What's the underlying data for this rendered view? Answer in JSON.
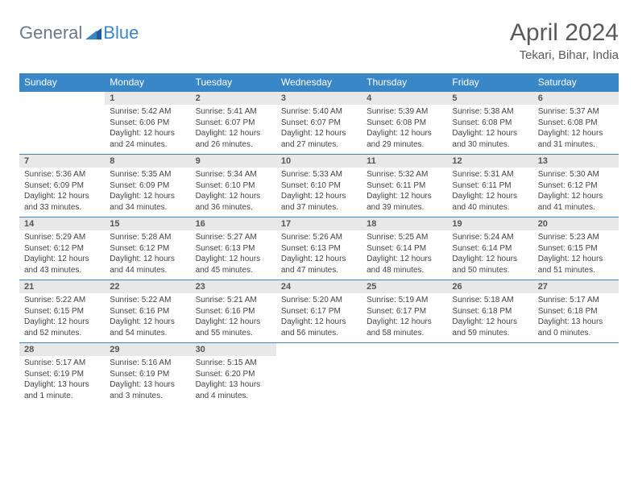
{
  "logo": {
    "text_general": "General",
    "text_blue": "Blue"
  },
  "title": "April 2024",
  "location": "Tekari, Bihar, India",
  "colors": {
    "header_bg": "#3a87c8",
    "header_text": "#ffffff",
    "daynum_bg": "#e8e8e8",
    "border": "#3a87c8",
    "body_text": "#444444",
    "title_text": "#5a5a5a"
  },
  "day_headers": [
    "Sunday",
    "Monday",
    "Tuesday",
    "Wednesday",
    "Thursday",
    "Friday",
    "Saturday"
  ],
  "weeks": [
    [
      null,
      {
        "num": "1",
        "sunrise": "Sunrise: 5:42 AM",
        "sunset": "Sunset: 6:06 PM",
        "day1": "Daylight: 12 hours",
        "day2": "and 24 minutes."
      },
      {
        "num": "2",
        "sunrise": "Sunrise: 5:41 AM",
        "sunset": "Sunset: 6:07 PM",
        "day1": "Daylight: 12 hours",
        "day2": "and 26 minutes."
      },
      {
        "num": "3",
        "sunrise": "Sunrise: 5:40 AM",
        "sunset": "Sunset: 6:07 PM",
        "day1": "Daylight: 12 hours",
        "day2": "and 27 minutes."
      },
      {
        "num": "4",
        "sunrise": "Sunrise: 5:39 AM",
        "sunset": "Sunset: 6:08 PM",
        "day1": "Daylight: 12 hours",
        "day2": "and 29 minutes."
      },
      {
        "num": "5",
        "sunrise": "Sunrise: 5:38 AM",
        "sunset": "Sunset: 6:08 PM",
        "day1": "Daylight: 12 hours",
        "day2": "and 30 minutes."
      },
      {
        "num": "6",
        "sunrise": "Sunrise: 5:37 AM",
        "sunset": "Sunset: 6:08 PM",
        "day1": "Daylight: 12 hours",
        "day2": "and 31 minutes."
      }
    ],
    [
      {
        "num": "7",
        "sunrise": "Sunrise: 5:36 AM",
        "sunset": "Sunset: 6:09 PM",
        "day1": "Daylight: 12 hours",
        "day2": "and 33 minutes."
      },
      {
        "num": "8",
        "sunrise": "Sunrise: 5:35 AM",
        "sunset": "Sunset: 6:09 PM",
        "day1": "Daylight: 12 hours",
        "day2": "and 34 minutes."
      },
      {
        "num": "9",
        "sunrise": "Sunrise: 5:34 AM",
        "sunset": "Sunset: 6:10 PM",
        "day1": "Daylight: 12 hours",
        "day2": "and 36 minutes."
      },
      {
        "num": "10",
        "sunrise": "Sunrise: 5:33 AM",
        "sunset": "Sunset: 6:10 PM",
        "day1": "Daylight: 12 hours",
        "day2": "and 37 minutes."
      },
      {
        "num": "11",
        "sunrise": "Sunrise: 5:32 AM",
        "sunset": "Sunset: 6:11 PM",
        "day1": "Daylight: 12 hours",
        "day2": "and 39 minutes."
      },
      {
        "num": "12",
        "sunrise": "Sunrise: 5:31 AM",
        "sunset": "Sunset: 6:11 PM",
        "day1": "Daylight: 12 hours",
        "day2": "and 40 minutes."
      },
      {
        "num": "13",
        "sunrise": "Sunrise: 5:30 AM",
        "sunset": "Sunset: 6:12 PM",
        "day1": "Daylight: 12 hours",
        "day2": "and 41 minutes."
      }
    ],
    [
      {
        "num": "14",
        "sunrise": "Sunrise: 5:29 AM",
        "sunset": "Sunset: 6:12 PM",
        "day1": "Daylight: 12 hours",
        "day2": "and 43 minutes."
      },
      {
        "num": "15",
        "sunrise": "Sunrise: 5:28 AM",
        "sunset": "Sunset: 6:12 PM",
        "day1": "Daylight: 12 hours",
        "day2": "and 44 minutes."
      },
      {
        "num": "16",
        "sunrise": "Sunrise: 5:27 AM",
        "sunset": "Sunset: 6:13 PM",
        "day1": "Daylight: 12 hours",
        "day2": "and 45 minutes."
      },
      {
        "num": "17",
        "sunrise": "Sunrise: 5:26 AM",
        "sunset": "Sunset: 6:13 PM",
        "day1": "Daylight: 12 hours",
        "day2": "and 47 minutes."
      },
      {
        "num": "18",
        "sunrise": "Sunrise: 5:25 AM",
        "sunset": "Sunset: 6:14 PM",
        "day1": "Daylight: 12 hours",
        "day2": "and 48 minutes."
      },
      {
        "num": "19",
        "sunrise": "Sunrise: 5:24 AM",
        "sunset": "Sunset: 6:14 PM",
        "day1": "Daylight: 12 hours",
        "day2": "and 50 minutes."
      },
      {
        "num": "20",
        "sunrise": "Sunrise: 5:23 AM",
        "sunset": "Sunset: 6:15 PM",
        "day1": "Daylight: 12 hours",
        "day2": "and 51 minutes."
      }
    ],
    [
      {
        "num": "21",
        "sunrise": "Sunrise: 5:22 AM",
        "sunset": "Sunset: 6:15 PM",
        "day1": "Daylight: 12 hours",
        "day2": "and 52 minutes."
      },
      {
        "num": "22",
        "sunrise": "Sunrise: 5:22 AM",
        "sunset": "Sunset: 6:16 PM",
        "day1": "Daylight: 12 hours",
        "day2": "and 54 minutes."
      },
      {
        "num": "23",
        "sunrise": "Sunrise: 5:21 AM",
        "sunset": "Sunset: 6:16 PM",
        "day1": "Daylight: 12 hours",
        "day2": "and 55 minutes."
      },
      {
        "num": "24",
        "sunrise": "Sunrise: 5:20 AM",
        "sunset": "Sunset: 6:17 PM",
        "day1": "Daylight: 12 hours",
        "day2": "and 56 minutes."
      },
      {
        "num": "25",
        "sunrise": "Sunrise: 5:19 AM",
        "sunset": "Sunset: 6:17 PM",
        "day1": "Daylight: 12 hours",
        "day2": "and 58 minutes."
      },
      {
        "num": "26",
        "sunrise": "Sunrise: 5:18 AM",
        "sunset": "Sunset: 6:18 PM",
        "day1": "Daylight: 12 hours",
        "day2": "and 59 minutes."
      },
      {
        "num": "27",
        "sunrise": "Sunrise: 5:17 AM",
        "sunset": "Sunset: 6:18 PM",
        "day1": "Daylight: 13 hours",
        "day2": "and 0 minutes."
      }
    ],
    [
      {
        "num": "28",
        "sunrise": "Sunrise: 5:17 AM",
        "sunset": "Sunset: 6:19 PM",
        "day1": "Daylight: 13 hours",
        "day2": "and 1 minute."
      },
      {
        "num": "29",
        "sunrise": "Sunrise: 5:16 AM",
        "sunset": "Sunset: 6:19 PM",
        "day1": "Daylight: 13 hours",
        "day2": "and 3 minutes."
      },
      {
        "num": "30",
        "sunrise": "Sunrise: 5:15 AM",
        "sunset": "Sunset: 6:20 PM",
        "day1": "Daylight: 13 hours",
        "day2": "and 4 minutes."
      },
      null,
      null,
      null,
      null
    ]
  ]
}
